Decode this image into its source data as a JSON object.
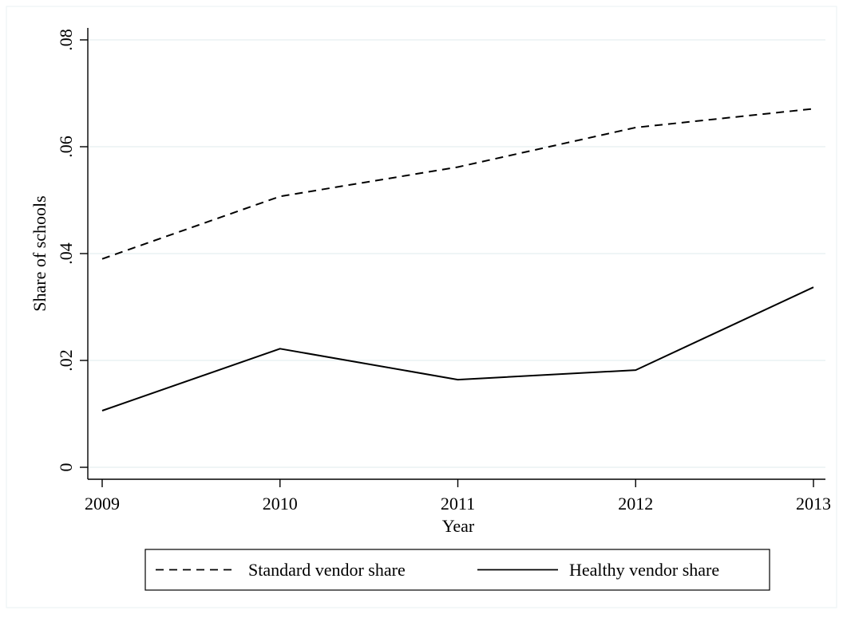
{
  "chart_data": {
    "type": "line",
    "xlabel": "Year",
    "ylabel": "Share of schools",
    "x": [
      2009,
      2010,
      2011,
      2012,
      2013
    ],
    "x_tick_labels": [
      "2009",
      "2010",
      "2011",
      "2012",
      "2013"
    ],
    "y_ticks": [
      0,
      0.02,
      0.04,
      0.06,
      0.08
    ],
    "y_tick_labels": [
      "0",
      ".02",
      ".04",
      ".06",
      ".08"
    ],
    "xlim": [
      2009,
      2013
    ],
    "ylim": [
      0,
      0.08
    ],
    "grid": true,
    "legend_position": "bottom",
    "series": [
      {
        "name": "Standard vendor share",
        "style": "dashed",
        "color": "#000000",
        "values": [
          0.039,
          0.0507,
          0.0562,
          0.0636,
          0.0671
        ]
      },
      {
        "name": "Healthy vendor share",
        "style": "solid",
        "color": "#000000",
        "values": [
          0.0106,
          0.0222,
          0.0164,
          0.0182,
          0.0337
        ]
      }
    ],
    "colors": {
      "grid": "#eaf2f3",
      "axis": "#000000",
      "frame": "#eaf2f3"
    }
  }
}
